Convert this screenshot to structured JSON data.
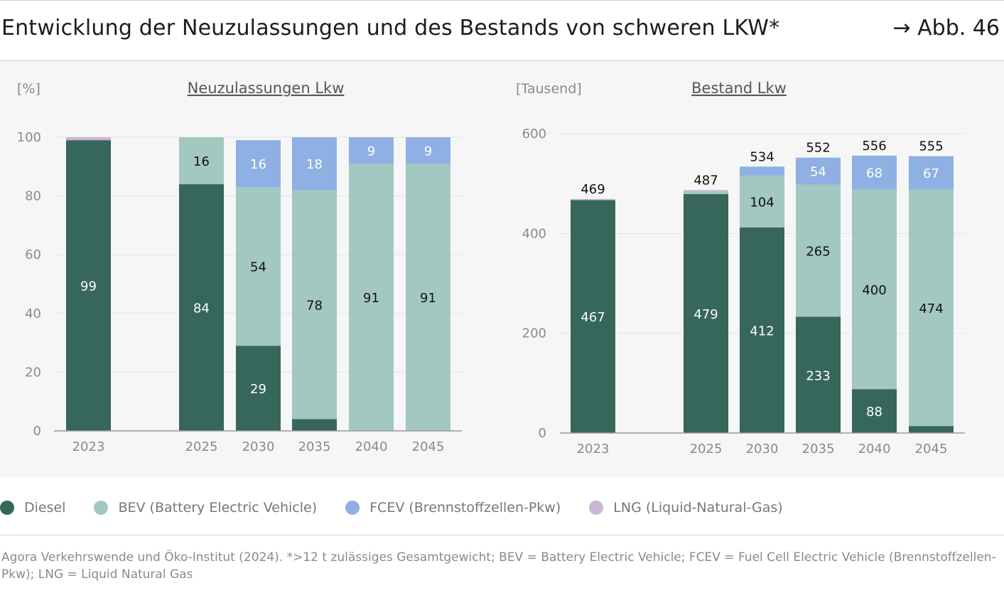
{
  "header": {
    "title": "Entwicklung der Neuzulassungen und des Bestands von schweren LKW*",
    "figure_ref": "→ Abb. 46"
  },
  "colors": {
    "diesel": "#37665a",
    "bev": "#a3c7c1",
    "fcev": "#8eb0e2",
    "lng": "#c9b6d9",
    "axis": "#9a9a9a",
    "grid": "#e4e4e4"
  },
  "legend": [
    {
      "key": "diesel",
      "label": "Diesel"
    },
    {
      "key": "bev",
      "label": "BEV (Battery Electric Vehicle)"
    },
    {
      "key": "fcev",
      "label": "FCEV (Brennstoffzellen-Pkw)"
    },
    {
      "key": "lng",
      "label": "LNG (Liquid-Natural-Gas)"
    }
  ],
  "source": "Agora Verkehrswende und Öko-Institut (2024). *>12 t zulässiges Gesamtgewicht; BEV = Battery Electric Vehicle; FCEV = Fuel Cell Electric Vehicle (Brennstoffzellen-Pkw); LNG = Liquid Natural Gas",
  "chart_data": [
    {
      "type": "bar",
      "stacked": true,
      "title": "Neuzulassungen Lkw",
      "unit": "[%]",
      "ylim": [
        0,
        100
      ],
      "yticks": [
        0,
        20,
        40,
        60,
        80,
        100
      ],
      "categories": [
        "2023",
        "2025",
        "2030",
        "2035",
        "2040",
        "2045"
      ],
      "series": [
        {
          "name": "Diesel",
          "key": "diesel",
          "values": [
            99,
            84,
            29,
            4,
            0,
            0
          ],
          "labels": [
            "99",
            "84",
            "29",
            "",
            "",
            ""
          ]
        },
        {
          "name": "BEV",
          "key": "bev",
          "values": [
            0,
            16,
            54,
            78,
            91,
            91
          ],
          "labels": [
            "",
            "16",
            "54",
            "78",
            "91",
            "91"
          ]
        },
        {
          "name": "FCEV",
          "key": "fcev",
          "values": [
            0,
            0,
            16,
            18,
            9,
            9
          ],
          "labels": [
            "",
            "",
            "16",
            "18",
            "9",
            "9"
          ]
        },
        {
          "name": "LNG",
          "key": "lng",
          "values": [
            1,
            0,
            0,
            0,
            0,
            0
          ],
          "labels": [
            "",
            "",
            "",
            "",
            "",
            ""
          ]
        }
      ]
    },
    {
      "type": "bar",
      "stacked": true,
      "title": "Bestand Lkw",
      "unit": "[Tausend]",
      "ylim": [
        0,
        600
      ],
      "yticks": [
        0,
        200,
        400,
        600
      ],
      "categories": [
        "2023",
        "2025",
        "2030",
        "2035",
        "2040",
        "2045"
      ],
      "series": [
        {
          "name": "Diesel",
          "key": "diesel",
          "values": [
            467,
            479,
            412,
            233,
            88,
            14
          ],
          "labels": [
            "467",
            "479",
            "412",
            "233",
            "88",
            ""
          ]
        },
        {
          "name": "BEV",
          "key": "bev",
          "values": [
            0,
            6,
            104,
            265,
            400,
            474
          ],
          "labels": [
            "",
            "",
            "104",
            "265",
            "400",
            "474"
          ]
        },
        {
          "name": "FCEV",
          "key": "fcev",
          "values": [
            0,
            0,
            18,
            54,
            68,
            67
          ],
          "labels": [
            "",
            "",
            "",
            "54",
            "68",
            "67"
          ]
        },
        {
          "name": "LNG",
          "key": "lng",
          "values": [
            2,
            2,
            0,
            0,
            0,
            0
          ],
          "labels": [
            "",
            "",
            "",
            "",
            "",
            ""
          ]
        }
      ],
      "totals": [
        "469",
        "487",
        "534",
        "552",
        "556",
        "555"
      ]
    }
  ]
}
